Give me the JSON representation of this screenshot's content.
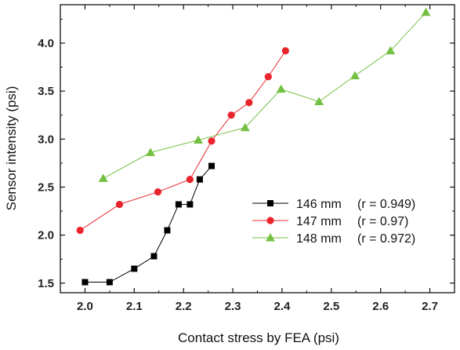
{
  "chart_data": {
    "type": "scatter",
    "xlabel": "Contact stress by FEA (psi)",
    "ylabel": "Sensor intensity (psi)",
    "xlim": [
      1.95,
      2.75
    ],
    "ylim": [
      1.4,
      4.4
    ],
    "x_ticks": [
      "2.0",
      "2.1",
      "2.2",
      "2.3",
      "2.4",
      "2.5",
      "2.6",
      "2.7"
    ],
    "y_ticks": [
      "1.5",
      "2.0",
      "2.5",
      "3.0",
      "3.5",
      "4.0"
    ],
    "grid": false,
    "legend_position": "center-right",
    "series": [
      {
        "name": "146 mm",
        "r_label": "(r = 0.949)",
        "color": "#000000",
        "marker": "square",
        "x": [
          2.0,
          2.05,
          2.1,
          2.14,
          2.167,
          2.19,
          2.213,
          2.233,
          2.257
        ],
        "y": [
          1.51,
          1.51,
          1.65,
          1.78,
          2.05,
          2.32,
          2.32,
          2.58,
          2.72
        ]
      },
      {
        "name": "147 mm",
        "r_label": "(r = 0.97)",
        "color": "#e8242c",
        "marker": "circle",
        "x": [
          1.99,
          2.07,
          2.148,
          2.213,
          2.257,
          2.297,
          2.333,
          2.372,
          2.407
        ],
        "y": [
          2.05,
          2.32,
          2.45,
          2.58,
          2.98,
          3.25,
          3.38,
          3.65,
          3.92
        ]
      },
      {
        "name": "148 mm",
        "r_label": "(r = 0.972)",
        "color": "#74c043",
        "marker": "triangle",
        "x": [
          2.037,
          2.133,
          2.23,
          2.325,
          2.398,
          2.475,
          2.548,
          2.62,
          2.692
        ],
        "y": [
          2.59,
          2.86,
          2.99,
          3.12,
          3.52,
          3.39,
          3.66,
          3.92,
          4.32
        ]
      }
    ]
  }
}
